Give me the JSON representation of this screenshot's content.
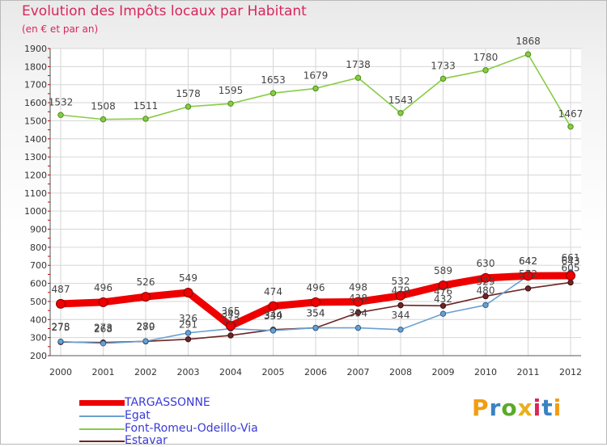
{
  "chart_data": {
    "type": "line",
    "title": "Evolution des Impôts locaux par Habitant",
    "subtitle": "(en € et par an)",
    "xlabel": "",
    "ylabel": "",
    "categories": [
      "2000",
      "2001",
      "2002",
      "2003",
      "2004",
      "2005",
      "2006",
      "2007",
      "2008",
      "2009",
      "2010",
      "2011",
      "2012"
    ],
    "ylim": [
      200,
      1900
    ],
    "yticks": [
      "200",
      "300",
      "400",
      "500",
      "600",
      "700",
      "800",
      "900",
      "1000",
      "1100",
      "1200",
      "1300",
      "1400",
      "1500",
      "1600",
      "1700",
      "1800",
      "1900"
    ],
    "series": [
      {
        "name": "TARGASSONNE",
        "color": "#ee0000",
        "values": [
          487,
          496,
          526,
          549,
          365,
          474,
          496,
          498,
          532,
          589,
          630,
          642,
          643
        ]
      },
      {
        "name": "Egat",
        "color": "#6aa0d0",
        "values": [
          278,
          268,
          280,
          326,
          349,
          339,
          354,
          354,
          344,
          432,
          480,
          642,
          661
        ]
      },
      {
        "name": "Font-Romeu-Odeillo-Via",
        "color": "#88cc44",
        "values": [
          1532,
          1508,
          1511,
          1578,
          1595,
          1653,
          1679,
          1738,
          1543,
          1733,
          1780,
          1868,
          1467
        ]
      },
      {
        "name": "Estavar",
        "color": "#6e2525",
        "values": [
          275,
          273,
          279,
          291,
          312,
          344,
          354,
          438,
          479,
          476,
          529,
          572,
          605
        ]
      }
    ],
    "data_labels": [
      {
        "series": 0,
        "values": [
          "487",
          "496",
          "526",
          "549",
          "365",
          "474",
          "496",
          "498",
          "532",
          "589",
          "630",
          "642",
          "643"
        ]
      },
      {
        "series": 1,
        "values": [
          "278",
          "268",
          "280",
          "326",
          "349",
          "339",
          "354",
          "354",
          "344",
          "432",
          "480",
          "642",
          "661"
        ]
      },
      {
        "series": 2,
        "values": [
          "1532",
          "1508",
          "1511",
          "1578",
          "1595",
          "1653",
          "1679",
          "1738",
          "1543",
          "1733",
          "1780",
          "1868",
          "1467"
        ]
      },
      {
        "series": 3,
        "values": [
          "275",
          "273",
          "279",
          "291",
          "312",
          "344",
          "354",
          "438",
          "479",
          "476",
          "529",
          "572",
          "605"
        ]
      }
    ],
    "grid": true
  },
  "legend": [
    {
      "label": "TARGASSONNE",
      "color": "#ee0000"
    },
    {
      "label": "Egat",
      "color": "#6aa0d0"
    },
    {
      "label": "Font-Romeu-Odeillo-Via",
      "color": "#88cc44"
    },
    {
      "label": "Estavar",
      "color": "#6e2525"
    }
  ],
  "logo": {
    "letters": [
      "P",
      "r",
      "o",
      "x",
      "i",
      "t",
      "i"
    ],
    "colors": [
      "#f39c12",
      "#3b82c4",
      "#5aaa2a",
      "#e8b020",
      "#d9265b",
      "#3b82c4",
      "#f39c12"
    ]
  }
}
